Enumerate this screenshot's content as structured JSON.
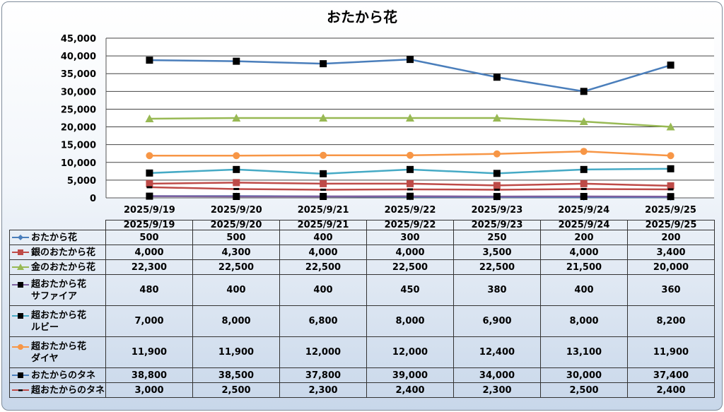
{
  "chart_data": {
    "type": "line",
    "title": "おたから花",
    "categories": [
      "2025/9/19",
      "2025/9/20",
      "2025/9/21",
      "2025/9/22",
      "2025/9/23",
      "2025/9/24",
      "2025/9/25"
    ],
    "ylim": [
      0,
      45000
    ],
    "yticks": [
      "0",
      "5,000",
      "10,000",
      "15,000",
      "20,000",
      "25,000",
      "30,000",
      "35,000",
      "40,000",
      "45,000"
    ],
    "grid": true,
    "legend": "data table below chart",
    "series": [
      {
        "name": "おたから花",
        "name_lines": [
          "おたから花"
        ],
        "color": "#4a7ebb",
        "marker": "diamond",
        "values": [
          500,
          500,
          400,
          300,
          250,
          200,
          200
        ],
        "labels": [
          "500",
          "500",
          "400",
          "300",
          "250",
          "200",
          "200"
        ]
      },
      {
        "name": "銀のおたから花",
        "name_lines": [
          "銀のおたから花"
        ],
        "color": "#be4b48",
        "marker": "square",
        "values": [
          4000,
          4300,
          4000,
          4000,
          3500,
          4000,
          3400
        ],
        "labels": [
          "4,000",
          "4,300",
          "4,000",
          "4,000",
          "3,500",
          "4,000",
          "3,400"
        ]
      },
      {
        "name": "金のおたから花",
        "name_lines": [
          "金のおたから花"
        ],
        "color": "#98b954",
        "marker": "triangle",
        "values": [
          22300,
          22500,
          22500,
          22500,
          22500,
          21500,
          20000
        ],
        "labels": [
          "22,300",
          "22,500",
          "22,500",
          "22,500",
          "22,500",
          "21,500",
          "20,000"
        ]
      },
      {
        "name": "超おたから花 サファイア",
        "name_lines": [
          "超おたから花",
          "サファイア"
        ],
        "color": "#7d60a0",
        "marker": "square-black",
        "values": [
          480,
          400,
          400,
          450,
          380,
          400,
          360
        ],
        "labels": [
          "480",
          "400",
          "400",
          "450",
          "380",
          "400",
          "360"
        ]
      },
      {
        "name": "超おたから花 ルビー",
        "name_lines": [
          "超おたから花",
          "ルビー"
        ],
        "color": "#46aac5",
        "marker": "square-black",
        "values": [
          7000,
          8000,
          6800,
          8000,
          6900,
          8000,
          8200
        ],
        "labels": [
          "7,000",
          "8,000",
          "6,800",
          "8,000",
          "6,900",
          "8,000",
          "8,200"
        ]
      },
      {
        "name": "超おたから花 ダイヤ",
        "name_lines": [
          "超おたから花",
          "ダイヤ"
        ],
        "color": "#f79646",
        "marker": "circle",
        "values": [
          11900,
          11900,
          12000,
          12000,
          12400,
          13100,
          11900
        ],
        "labels": [
          "11,900",
          "11,900",
          "12,000",
          "12,000",
          "12,400",
          "13,100",
          "11,900"
        ]
      },
      {
        "name": "おたからのタネ",
        "name_lines": [
          "おたからのタネ"
        ],
        "color": "#4a7ebb",
        "marker": "square-black",
        "values": [
          38800,
          38500,
          37800,
          39000,
          34000,
          30000,
          37400
        ],
        "labels": [
          "38,800",
          "38,500",
          "37,800",
          "39,000",
          "34,000",
          "30,000",
          "37,400"
        ]
      },
      {
        "name": "超おたからのタネ",
        "name_lines": [
          "超おたからのタネ"
        ],
        "color": "#be4b48",
        "marker": "dash",
        "values": [
          3000,
          2500,
          2300,
          2400,
          2300,
          2500,
          2400
        ],
        "labels": [
          "3,000",
          "2,500",
          "2,300",
          "2,400",
          "2,300",
          "2,500",
          "2,400"
        ]
      }
    ]
  }
}
